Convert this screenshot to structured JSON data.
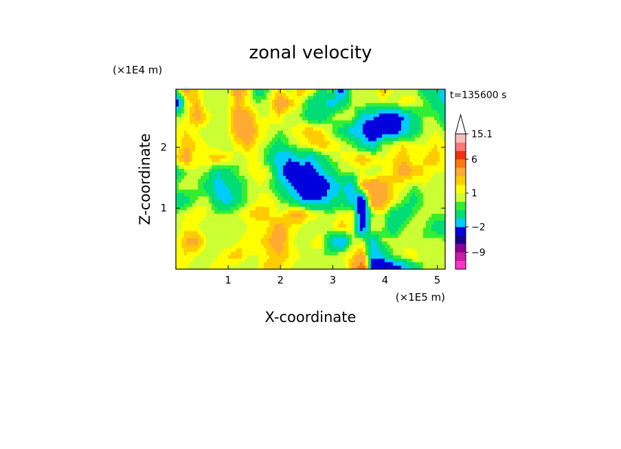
{
  "chart_data": {
    "type": "heatmap",
    "title": "zonal velocity",
    "xlabel": "X-coordinate",
    "ylabel": "Z-coordinate",
    "x_unit": "(×1E5 m)",
    "y_unit": "(×1E4 m)",
    "time_label": "t=135600 s",
    "xlim": [
      0,
      5.15
    ],
    "ylim": [
      0,
      2.95
    ],
    "x_ticks": [
      "1",
      "2",
      "3",
      "4",
      "5"
    ],
    "y_ticks": [
      "1",
      "2"
    ],
    "colorbar": {
      "levels": [
        -15,
        -12,
        -9,
        -6,
        -4,
        -2,
        -1,
        0,
        0.5,
        1,
        1.5,
        2,
        4,
        6,
        9,
        12,
        15.1
      ],
      "colors": [
        "#ff33cc",
        "#cc1aa6",
        "#880099",
        "#1a0088",
        "#0000dd",
        "#00ccff",
        "#00dd77",
        "#33ee33",
        "#ccff33",
        "#ffff00",
        "#ffcc00",
        "#ffaa33",
        "#ff7711",
        "#ee3311",
        "#ff7777",
        "#ffbbbb"
      ],
      "labels": [
        "15.1",
        "6",
        "1",
        "−2",
        "−9"
      ],
      "over_color": "#ffffff",
      "extend": "max"
    },
    "field": [
      [
        0.5,
        2.5,
        1.5,
        0.5,
        1.0,
        0.5,
        3.0,
        1.5,
        -1.0,
        0.5,
        1.5,
        0.5,
        2.0,
        1.5,
        -0.5,
        0.5,
        -3.0,
        0.5,
        1.0,
        0.5,
        2.0,
        1.0,
        0.5,
        1.0,
        -0.5,
        -0.5,
        -2.0
      ],
      [
        -3.0,
        1.0,
        2.0,
        0.5,
        0.5,
        1.0,
        2.0,
        1.0,
        0.5,
        1.0,
        3.0,
        2.0,
        1.0,
        -0.5,
        -0.5,
        -1.5,
        -0.5,
        0.5,
        1.0,
        0.5,
        1.0,
        0.5,
        1.5,
        1.0,
        0.5,
        -0.5,
        -1.0
      ],
      [
        0.5,
        1.0,
        2.5,
        1.5,
        0.5,
        1.0,
        3.0,
        2.5,
        1.0,
        1.0,
        1.5,
        0.5,
        0.5,
        -0.5,
        -1.0,
        0.5,
        1.0,
        1.0,
        -1.5,
        -1.5,
        -3.0,
        -3.0,
        -2.0,
        -0.5,
        0.5,
        0.5,
        -0.5
      ],
      [
        1.0,
        1.5,
        1.0,
        0.5,
        0.5,
        1.0,
        2.5,
        3.0,
        1.5,
        1.0,
        0.5,
        1.0,
        1.5,
        2.0,
        1.5,
        0.5,
        -0.5,
        -1.5,
        -2.0,
        -4.0,
        -3.5,
        -3.0,
        -1.5,
        -0.5,
        0.5,
        1.0,
        0.5
      ],
      [
        1.0,
        2.0,
        1.5,
        1.0,
        0.5,
        0.5,
        1.5,
        2.0,
        1.0,
        0.5,
        -0.5,
        0.5,
        1.0,
        1.5,
        2.0,
        1.5,
        1.0,
        0.5,
        -1.0,
        -1.5,
        0.5,
        1.0,
        1.5,
        1.0,
        1.0,
        1.5,
        1.0
      ],
      [
        1.5,
        2.5,
        1.0,
        1.5,
        2.0,
        1.5,
        0.5,
        1.0,
        1.0,
        -0.5,
        -1.5,
        -2.0,
        -1.0,
        -1.5,
        -0.5,
        0.5,
        1.0,
        1.5,
        2.0,
        1.5,
        1.0,
        1.5,
        2.0,
        1.0,
        1.5,
        2.0,
        1.0
      ],
      [
        -0.5,
        0.5,
        1.0,
        0.5,
        -1.0,
        -0.5,
        0.5,
        1.0,
        1.5,
        1.0,
        -1.5,
        -3.0,
        -3.5,
        -3.0,
        -1.5,
        -0.5,
        0.5,
        0.5,
        1.0,
        0.5,
        1.0,
        1.5,
        2.5,
        2.0,
        1.5,
        1.0,
        1.0
      ],
      [
        0.5,
        1.0,
        0.5,
        -0.5,
        -1.5,
        -1.0,
        -0.5,
        0.5,
        1.0,
        0.5,
        -0.5,
        -1.5,
        -3.0,
        -4.0,
        -3.5,
        -2.0,
        -1.0,
        -1.5,
        2.0,
        3.0,
        2.5,
        1.5,
        1.0,
        0.5,
        1.0,
        0.5,
        0.5
      ],
      [
        -0.5,
        -0.5,
        0.5,
        1.0,
        -1.0,
        -1.5,
        -0.5,
        0.5,
        1.0,
        1.5,
        0.5,
        -0.5,
        -1.5,
        -2.5,
        -2.0,
        -1.0,
        -0.5,
        -1.5,
        -3.0,
        3.5,
        2.5,
        1.5,
        0.5,
        -0.5,
        0.5,
        1.0,
        0.5
      ],
      [
        0.5,
        1.0,
        1.5,
        1.0,
        0.5,
        0.5,
        1.0,
        1.5,
        2.0,
        1.5,
        1.0,
        2.0,
        2.5,
        1.5,
        1.0,
        0.5,
        1.0,
        1.5,
        -4.0,
        0.5,
        1.0,
        -0.5,
        -1.0,
        0.5,
        1.0,
        0.5,
        0.5
      ],
      [
        0.5,
        1.5,
        1.0,
        0.5,
        1.0,
        1.0,
        0.5,
        1.0,
        1.0,
        1.5,
        2.5,
        1.5,
        1.0,
        0.5,
        0.5,
        1.0,
        2.0,
        1.0,
        -3.0,
        1.0,
        0.5,
        -1.0,
        0.5,
        1.0,
        0.5,
        -0.5,
        -0.5
      ],
      [
        1.0,
        2.0,
        2.5,
        1.0,
        0.5,
        0.5,
        1.0,
        1.5,
        1.5,
        2.0,
        2.5,
        1.5,
        0.5,
        1.0,
        1.5,
        -1.0,
        -2.5,
        0.5,
        1.0,
        -1.5,
        0.5,
        1.0,
        1.0,
        0.5,
        0.5,
        1.0,
        0.5
      ],
      [
        1.0,
        1.5,
        1.0,
        0.5,
        1.0,
        1.5,
        2.0,
        1.0,
        1.0,
        1.5,
        2.0,
        1.5,
        1.0,
        1.0,
        0.5,
        0.5,
        1.0,
        1.5,
        2.5,
        -2.0,
        -1.0,
        0.5,
        1.0,
        1.5,
        0.5,
        1.0,
        0.5
      ],
      [
        1.5,
        1.0,
        0.5,
        1.0,
        1.5,
        1.0,
        0.5,
        0.5,
        1.0,
        2.0,
        1.5,
        1.0,
        0.5,
        0.5,
        1.0,
        1.0,
        0.5,
        2.0,
        6.0,
        -3.0,
        -4.0,
        -3.5,
        -2.0,
        -1.0,
        0.5,
        1.0,
        0.5
      ]
    ]
  }
}
